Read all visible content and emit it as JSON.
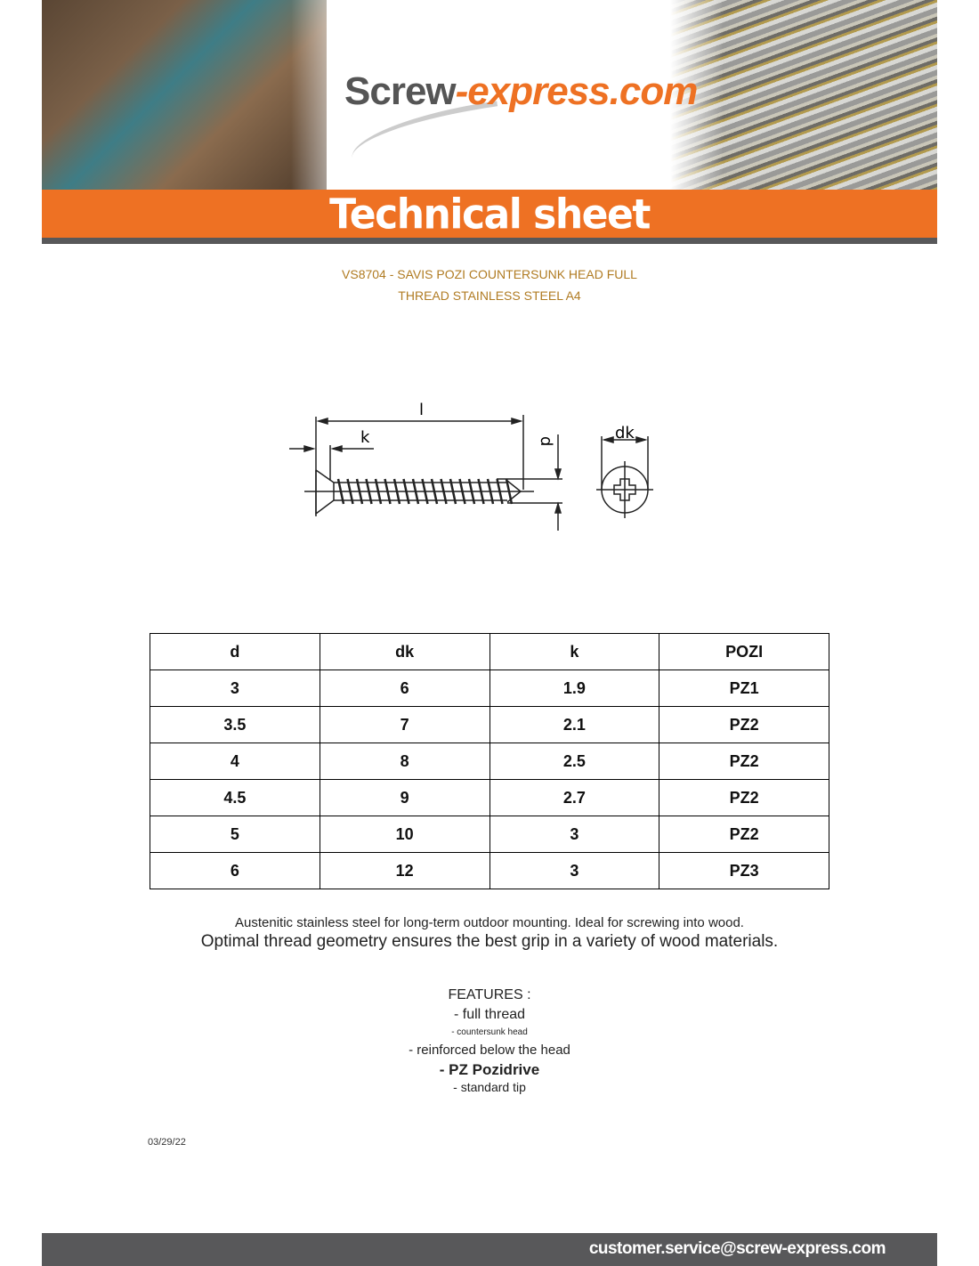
{
  "header": {
    "logo_part1": "Screw",
    "logo_part2": "-express.com",
    "title": "Technical sheet"
  },
  "product": {
    "title_line1": "VS8704 - SAVIS POZI COUNTERSUNK HEAD FULL",
    "title_line2": "THREAD STAINLESS STEEL A4"
  },
  "drawing": {
    "label_l": "l",
    "label_k": "k",
    "label_d": "d",
    "label_dk": "dk"
  },
  "table": {
    "headers": [
      "d",
      "dk",
      "k",
      "POZI"
    ],
    "rows": [
      [
        "3",
        "6",
        "1.9",
        "PZ1"
      ],
      [
        "3.5",
        "7",
        "2.1",
        "PZ2"
      ],
      [
        "4",
        "8",
        "2.5",
        "PZ2"
      ],
      [
        "4.5",
        "9",
        "2.7",
        "PZ2"
      ],
      [
        "5",
        "10",
        "3",
        "PZ2"
      ],
      [
        "6",
        "12",
        "3",
        "PZ3"
      ]
    ]
  },
  "description": {
    "line1": "Austenitic stainless steel for long-term outdoor mounting. Ideal for screwing into wood.",
    "line2": "Optimal thread geometry ensures the best grip in a variety of wood materials."
  },
  "features": {
    "title": "FEATURES :",
    "items": [
      "- full thread",
      "- countersunk head",
      "- reinforced below the head",
      "- PZ Pozidrive",
      "- standard tip"
    ]
  },
  "date": "03/29/22",
  "footer": {
    "email": "customer.service@screw-express.com"
  },
  "colors": {
    "brand_orange": "#ee7123",
    "dark_gray": "#58585a",
    "subtitle_gold": "#b07b22"
  }
}
